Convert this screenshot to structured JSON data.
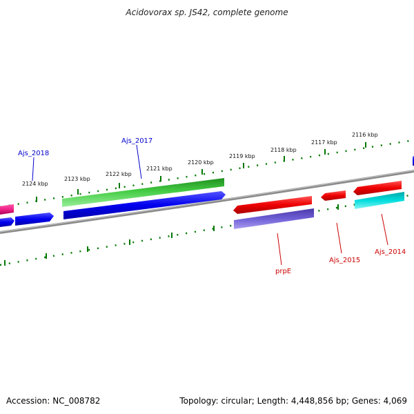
{
  "header": {
    "title": "Acidovorax sp. JS42, complete genome"
  },
  "footer": {
    "accession": "Accession: NC_008782",
    "summary": "Topology: circular; Length: 4,448,856 bp; Genes: 4,069"
  },
  "scale": {
    "tick_labels": [
      "2124 kbp",
      "2123 kbp",
      "2122 kbp",
      "2121 kbp",
      "2120 kbp",
      "2119 kbp",
      "2118 kbp",
      "2117 kbp",
      "2116 kbp"
    ]
  },
  "genes": {
    "Ajs_2018": {
      "label": "Ajs_2018",
      "color": "#0000cc"
    },
    "Ajs_2017": {
      "label": "Ajs_2017",
      "color": "#0000cc"
    },
    "prpE": {
      "label": "prpE",
      "color": "#cc0000"
    },
    "Ajs_2015": {
      "label": "Ajs_2015",
      "color": "#cc0000"
    },
    "Ajs_2014": {
      "label": "Ajs_2014",
      "color": "#cc0000"
    }
  },
  "colors": {
    "backbone": "#888888",
    "ticks": "#007700",
    "forward_cds": "#0000ee",
    "reverse_cds": "#ee0000",
    "green_feature": "#33bb33",
    "purple_feature": "#6655cc",
    "cyan_feature": "#00cccc",
    "pink_feature": "#ee2288"
  }
}
